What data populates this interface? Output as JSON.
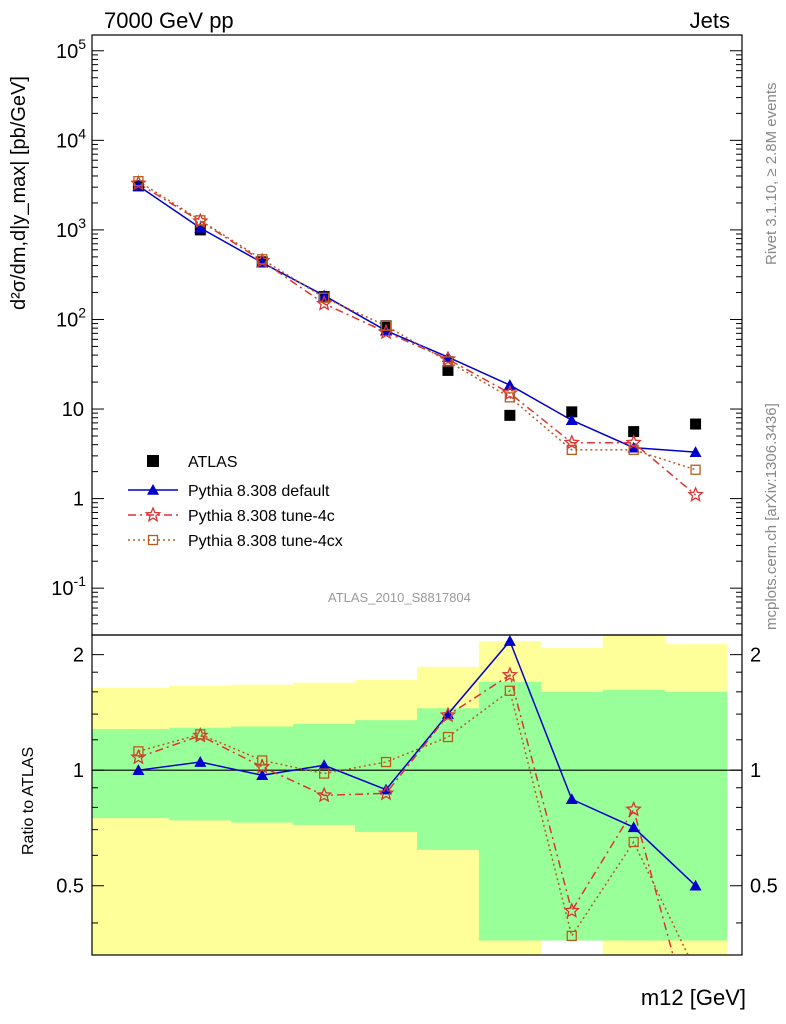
{
  "header": {
    "left": "7000 GeV pp",
    "right": "Jets"
  },
  "side_text": {
    "rivet": "Rivet 3.1.10, ≥ 2.8M events",
    "mcplots": "mcplots.cern.ch [arXiv:1306.3436]"
  },
  "watermark": "ATLAS_2010_S8817804",
  "chart_data": [
    {
      "type": "scatter",
      "title": "",
      "ylabel": "d²σ/dm,d|y_max| [pb/GeV]",
      "xlabel": "m12 [GeV]",
      "yscale": "log",
      "ylim": [
        0.03,
        150000
      ],
      "ytick_labels": [
        "10^5",
        "10^4",
        "10^3",
        "10^2",
        "10",
        "1",
        "10^-1"
      ],
      "legend": {
        "placement": "lower-left",
        "entries": [
          "ATLAS",
          "Pythia 8.308 default",
          "Pythia 8.308 tune-4c",
          "Pythia 8.308 tune-4cx"
        ]
      },
      "bins": [
        1,
        2,
        3,
        4,
        5,
        6,
        7,
        8,
        9,
        10
      ],
      "series": [
        {
          "name": "ATLAS",
          "marker": "filled-square",
          "color": "#000000",
          "values": [
            3100,
            1000,
            440,
            180,
            85,
            27,
            8.5,
            9.3,
            5.6,
            6.8
          ]
        },
        {
          "name": "Pythia 8.308 default",
          "marker": "filled-triangle",
          "color": "#0000cc",
          "values": [
            3100,
            1050,
            430,
            185,
            75,
            38,
            18.5,
            7.5,
            3.7,
            3.3
          ]
        },
        {
          "name": "Pythia 8.308 tune-4c",
          "marker": "open-star",
          "color": "#dd3333",
          "values": [
            3300,
            1250,
            450,
            150,
            72,
            36,
            15,
            4.2,
            4.2,
            1.1
          ]
        },
        {
          "name": "Pythia 8.308 tune-4cx",
          "marker": "open-square",
          "color": "#b85c1e",
          "values": [
            3500,
            1280,
            470,
            175,
            85,
            34,
            13.5,
            3.5,
            3.5,
            2.1
          ]
        }
      ]
    },
    {
      "type": "line",
      "ylabel": "Ratio to ATLAS",
      "ylim": [
        0.33,
        2.25
      ],
      "ytick_labels": [
        "0.5",
        "1",
        "2"
      ],
      "bins": [
        1,
        2,
        3,
        4,
        5,
        6,
        7,
        8,
        9,
        10
      ],
      "bands": {
        "green": [
          [
            0.75,
            1.28
          ],
          [
            0.74,
            1.29
          ],
          [
            0.73,
            1.3
          ],
          [
            0.72,
            1.32
          ],
          [
            0.69,
            1.35
          ],
          [
            0.62,
            1.45
          ],
          [
            0.36,
            1.7
          ],
          [
            0.36,
            1.6
          ],
          [
            0.36,
            1.62
          ],
          [
            0.36,
            1.6
          ]
        ],
        "yellow": [
          [
            0.33,
            1.64
          ],
          [
            0.33,
            1.66
          ],
          [
            0.33,
            1.67
          ],
          [
            0.33,
            1.69
          ],
          [
            0.33,
            1.72
          ],
          [
            0.33,
            1.86
          ],
          [
            0.33,
            2.17
          ],
          [
            0.43,
            2.08
          ],
          [
            0.33,
            2.25
          ],
          [
            0.33,
            2.13
          ]
        ]
      },
      "series": [
        {
          "name": "Pythia 8.308 default",
          "color": "#0000cc",
          "values": [
            1.0,
            1.05,
            0.97,
            1.03,
            0.89,
            1.4,
            2.17,
            0.84,
            0.71,
            0.5
          ]
        },
        {
          "name": "Pythia 8.308 tune-4c",
          "color": "#dd3333",
          "values": [
            1.08,
            1.23,
            1.02,
            0.86,
            0.87,
            1.39,
            1.77,
            0.43,
            0.79,
            0.16
          ]
        },
        {
          "name": "Pythia 8.308 tune-4cx",
          "color": "#b85c1e",
          "values": [
            1.12,
            1.24,
            1.06,
            0.98,
            1.05,
            1.22,
            1.61,
            0.37,
            0.65,
            0.3
          ]
        }
      ]
    }
  ]
}
